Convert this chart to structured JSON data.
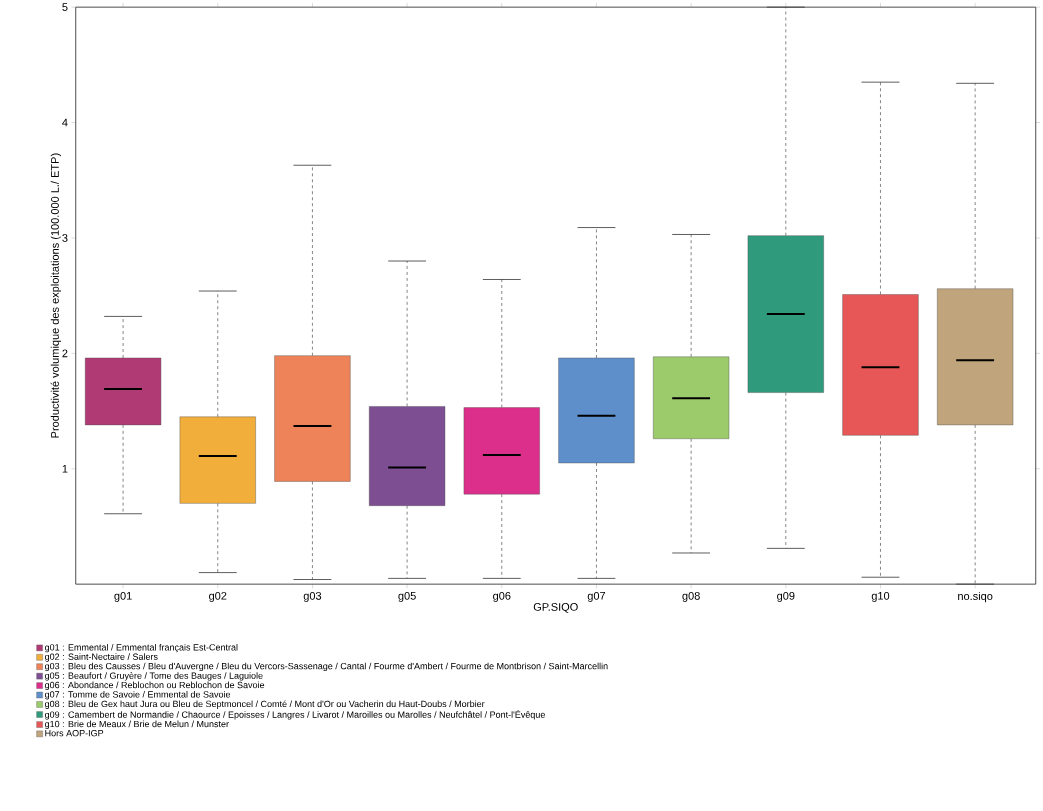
{
  "chart_data": {
    "type": "box",
    "xlabel": "GP.SIQO",
    "ylabel": "Productivité volumique des exploitations (100.000 L./ ETP)",
    "categories": [
      "g01",
      "g02",
      "g03",
      "g05",
      "g06",
      "g07",
      "g08",
      "g09",
      "g10",
      "no.siqo"
    ],
    "ylim": [
      0,
      5
    ],
    "yticks": [
      1,
      2,
      3,
      4,
      5
    ],
    "legend": "bottom",
    "line_style": "dashed",
    "series": [
      {
        "name": "g01 : Emmental / Emmental français Est-Central",
        "color": "#b03a74",
        "boxes": [
          {
            "low": 0.61,
            "q1": 1.38,
            "median": 1.69,
            "q3": 1.96,
            "high": 2.32
          },
          null,
          null,
          null,
          null,
          null,
          null,
          null,
          null,
          null
        ]
      },
      {
        "name": "g02 : Saint-Nectaire / Salers",
        "color": "#f2ae3b",
        "boxes": [
          null,
          {
            "low": 0.1,
            "q1": 0.7,
            "median": 1.11,
            "q3": 1.45,
            "high": 2.54
          },
          null,
          null,
          null,
          null,
          null,
          null,
          null,
          null
        ]
      },
      {
        "name": "g03 : Bleu des Causses / Bleu d'Auvergne / Bleu du Vercors-Sassenage / Cantal / Fourme d'Ambert / Fourme de Montbrison / Saint-Marcellin",
        "color": "#ee835a",
        "boxes": [
          null,
          null,
          {
            "low": 0.04,
            "q1": 0.89,
            "median": 1.37,
            "q3": 1.98,
            "high": 3.63
          },
          null,
          null,
          null,
          null,
          null,
          null,
          null
        ]
      },
      {
        "name": "g05 : Beaufort / Gruyère / Tome des Bauges / Laguiole",
        "color": "#7d4e92",
        "boxes": [
          null,
          null,
          null,
          {
            "low": 0.05,
            "q1": 0.68,
            "median": 1.01,
            "q3": 1.54,
            "high": 2.8
          },
          null,
          null,
          null,
          null,
          null,
          null
        ]
      },
      {
        "name": "g06 : Abondance / Reblochon ou Reblochon de Savoie",
        "color": "#dc2e8b",
        "boxes": [
          null,
          null,
          null,
          null,
          {
            "low": 0.05,
            "q1": 0.78,
            "median": 1.12,
            "q3": 1.53,
            "high": 2.64
          },
          null,
          null,
          null,
          null,
          null
        ]
      },
      {
        "name": "g07 : Tomme de Savoie / Emmental de Savoie",
        "color": "#5f8fcb",
        "boxes": [
          null,
          null,
          null,
          null,
          null,
          {
            "low": 0.05,
            "q1": 1.05,
            "median": 1.46,
            "q3": 1.96,
            "high": 3.09
          },
          null,
          null,
          null,
          null
        ]
      },
      {
        "name": "g08 : Bleu de Gex haut Jura ou Bleu de Septmoncel / Comté / Mont d'Or ou Vacherin du Haut-Doubs / Morbier",
        "color": "#9ccb6c",
        "boxes": [
          null,
          null,
          null,
          null,
          null,
          null,
          {
            "low": 0.27,
            "q1": 1.26,
            "median": 1.61,
            "q3": 1.97,
            "high": 3.03
          },
          null,
          null,
          null
        ]
      },
      {
        "name": "g09 : Camembert de Normandie / Chaource / Epoisses / Langres / Livarot / Maroilles ou Marolles / Neufchâtel / Pont-l'Évêque",
        "color": "#2f9a7c",
        "boxes": [
          null,
          null,
          null,
          null,
          null,
          null,
          null,
          {
            "low": 0.31,
            "q1": 1.66,
            "median": 2.34,
            "q3": 3.02,
            "high": 5.0
          },
          null,
          null
        ]
      },
      {
        "name": "g10 : Brie de Meaux / Brie de Melun / Munster",
        "color": "#e85757",
        "boxes": [
          null,
          null,
          null,
          null,
          null,
          null,
          null,
          null,
          {
            "low": 0.06,
            "q1": 1.29,
            "median": 1.88,
            "q3": 2.51,
            "high": 4.35
          },
          null
        ]
      },
      {
        "name": "Hors AOP-IGP",
        "color": "#c0a47c",
        "boxes": [
          null,
          null,
          null,
          null,
          null,
          null,
          null,
          null,
          null,
          {
            "low": 0.0,
            "q1": 1.38,
            "median": 1.94,
            "q3": 2.56,
            "high": 4.34
          }
        ]
      }
    ]
  }
}
